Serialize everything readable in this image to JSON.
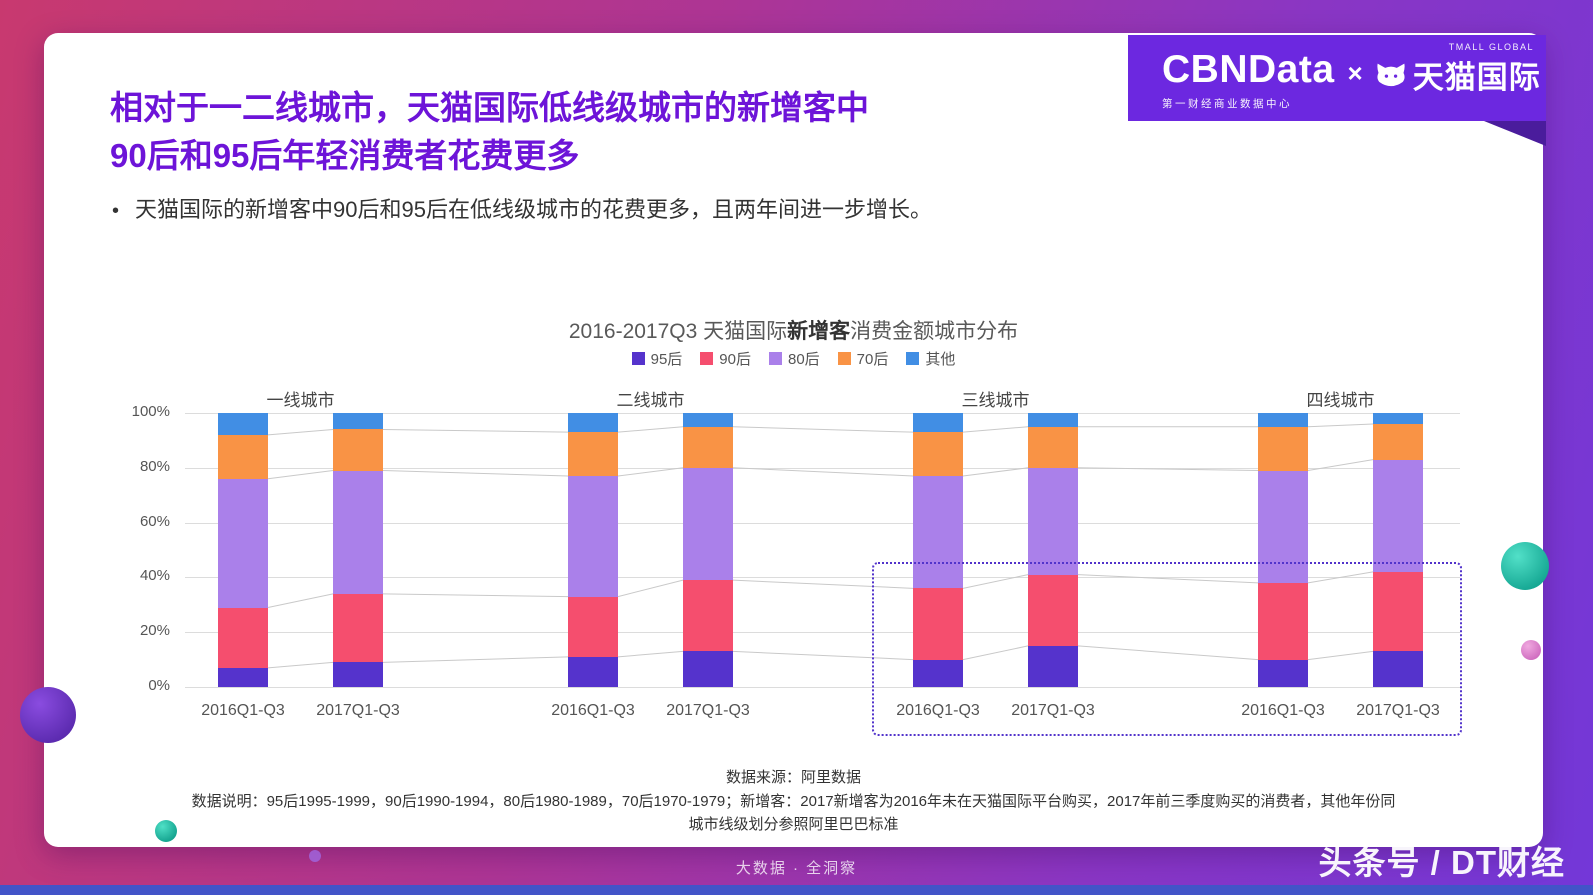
{
  "header": {
    "logo_primary": "CBNData",
    "logo_separator": "×",
    "logo_secondary": "天猫国际",
    "logo_subtitle": "第一财经商业数据中心",
    "logo_corner": "TMALL GLOBAL"
  },
  "title": {
    "line1": "相对于一二线城市，天猫国际低线级城市的新增客中",
    "line2": "90后和95后年轻消费者花费更多"
  },
  "bullet": {
    "marker": "•",
    "text": "天猫国际的新增客中90后和95后在低线级城市的花费更多，且两年间进一步增长。"
  },
  "chart_data": {
    "type": "bar",
    "stacked": true,
    "title": {
      "prefix": "2016-2017Q3 天猫国际",
      "bold": "新增客",
      "suffix": "消费金额城市分布"
    },
    "unit": "percent",
    "ylim": [
      0,
      100
    ],
    "y_ticks": [
      "100%",
      "80%",
      "60%",
      "40%",
      "20%",
      "0%"
    ],
    "grid": true,
    "legend_position": "top",
    "groups": [
      "一线城市",
      "二线城市",
      "三线城市",
      "四线城市"
    ],
    "categories": [
      "2016Q1-Q3",
      "2017Q1-Q3",
      "2016Q1-Q3",
      "2017Q1-Q3",
      "2016Q1-Q3",
      "2017Q1-Q3",
      "2016Q1-Q3",
      "2017Q1-Q3"
    ],
    "series": [
      {
        "name": "95后",
        "color": "#5533cc",
        "values": [
          7,
          9,
          11,
          13,
          10,
          15,
          10,
          13
        ]
      },
      {
        "name": "90后",
        "color": "#f54e6e",
        "values": [
          22,
          25,
          22,
          26,
          26,
          26,
          28,
          29
        ]
      },
      {
        "name": "80后",
        "color": "#aa80ea",
        "values": [
          47,
          45,
          44,
          41,
          41,
          39,
          41,
          41
        ]
      },
      {
        "name": "70后",
        "color": "#f99345",
        "values": [
          16,
          15,
          16,
          15,
          16,
          15,
          16,
          13
        ]
      },
      {
        "name": "其他",
        "color": "#418ee4",
        "values": [
          8,
          6,
          7,
          5,
          7,
          5,
          5,
          4
        ]
      }
    ],
    "highlight": {
      "groups": [
        "三线城市",
        "四线城市"
      ],
      "style": "dotted-purple-box",
      "color": "#5233cb"
    }
  },
  "footer": {
    "source": "数据来源：阿里数据",
    "note_line1": "数据说明：95后1995-1999，90后1990-1994，80后1980-1989，70后1970-1979；新增客：2017新增客为2016年未在天猫国际平台购买，2017年前三季度购买的消费者，其他年份同",
    "note_line2": "城市线级划分参照阿里巴巴标准"
  },
  "page": {
    "tagline": "大数据 · 全洞察",
    "watermark": "头条号 / DT财经"
  },
  "colors": {
    "title_purple": "#6d14d8",
    "banner_purple": "#6c28e0",
    "highlight_box": "#5233cb"
  }
}
